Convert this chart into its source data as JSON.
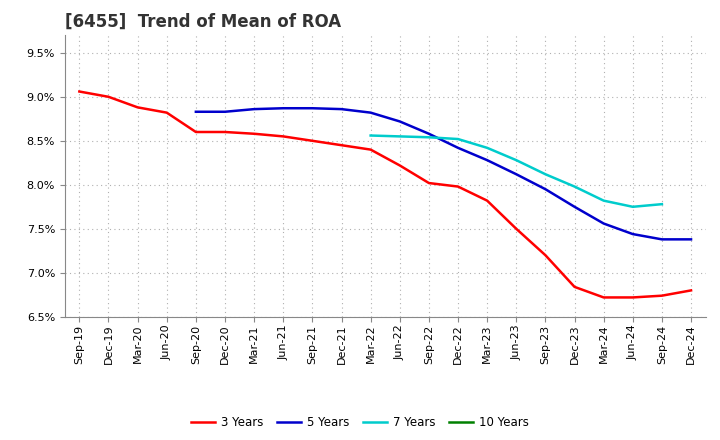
{
  "title": "[6455]  Trend of Mean of ROA",
  "x_labels": [
    "Sep-19",
    "Dec-19",
    "Mar-20",
    "Jun-20",
    "Sep-20",
    "Dec-20",
    "Mar-21",
    "Jun-21",
    "Sep-21",
    "Dec-21",
    "Mar-22",
    "Jun-22",
    "Sep-22",
    "Dec-22",
    "Mar-23",
    "Jun-23",
    "Sep-23",
    "Dec-23",
    "Mar-24",
    "Jun-24",
    "Sep-24",
    "Dec-24"
  ],
  "series": {
    "3 Years": {
      "color": "#ff0000",
      "data": [
        9.06,
        9.0,
        8.88,
        8.82,
        8.6,
        8.6,
        8.58,
        8.55,
        8.5,
        8.45,
        8.4,
        8.22,
        8.02,
        7.98,
        7.82,
        7.5,
        7.2,
        6.84,
        6.72,
        6.72,
        6.74,
        6.8
      ]
    },
    "5 Years": {
      "color": "#0000cc",
      "data": [
        null,
        null,
        null,
        null,
        8.83,
        8.83,
        8.86,
        8.87,
        8.87,
        8.86,
        8.82,
        8.72,
        8.58,
        8.42,
        8.28,
        8.12,
        7.95,
        7.75,
        7.56,
        7.44,
        7.38,
        7.38
      ]
    },
    "7 Years": {
      "color": "#00cccc",
      "data": [
        null,
        null,
        null,
        null,
        null,
        null,
        null,
        null,
        null,
        null,
        8.56,
        8.55,
        8.54,
        8.52,
        8.42,
        8.28,
        8.12,
        7.98,
        7.82,
        7.75,
        7.78,
        null
      ]
    },
    "10 Years": {
      "color": "#008000",
      "data": [
        null,
        null,
        null,
        null,
        null,
        null,
        null,
        null,
        null,
        null,
        null,
        null,
        null,
        null,
        null,
        null,
        null,
        null,
        null,
        null,
        null,
        null
      ]
    }
  },
  "ylim": [
    6.5,
    9.7
  ],
  "yticks": [
    6.5,
    7.0,
    7.5,
    8.0,
    8.5,
    9.0,
    9.5
  ],
  "background_color": "#ffffff",
  "grid_color": "#b0b0b0",
  "title_fontsize": 12,
  "tick_fontsize": 8,
  "legend_fontsize": 8.5
}
